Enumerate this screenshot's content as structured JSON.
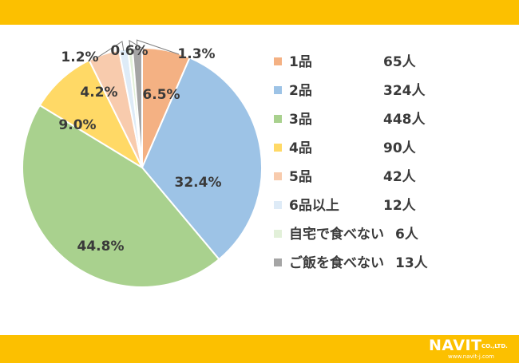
{
  "colors": {
    "band": "#fcc000",
    "text": "#3a3a3a",
    "leader": "#7f7f7f"
  },
  "chart_data": {
    "type": "pie",
    "start_angle_deg": 0,
    "direction": "clockwise",
    "slices": [
      {
        "label": "1品",
        "count": "65人",
        "value": 6.5,
        "pct_label": "6.5%",
        "color": "#f4b183"
      },
      {
        "label": "2品",
        "count": "324人",
        "value": 32.4,
        "pct_label": "32.4%",
        "color": "#9dc3e6"
      },
      {
        "label": "3品",
        "count": "448人",
        "value": 44.8,
        "pct_label": "44.8%",
        "color": "#a9d18e"
      },
      {
        "label": "4品",
        "count": "90人",
        "value": 9.0,
        "pct_label": "9.0%",
        "color": "#ffd966"
      },
      {
        "label": "5品",
        "count": "42人",
        "value": 4.2,
        "pct_label": "4.2%",
        "color": "#f8cbad"
      },
      {
        "label": "6品以上",
        "count": "12人",
        "value": 1.2,
        "pct_label": "1.2%",
        "color": "#deebf7"
      },
      {
        "label": "自宅で食べない",
        "count": "6人",
        "value": 0.6,
        "pct_label": "0.6%",
        "color": "#e2f0d9"
      },
      {
        "label": "ご飯を食べない",
        "count": "13人",
        "value": 1.3,
        "pct_label": "1.3%",
        "color": "#a5a5a5"
      }
    ],
    "legend_position": "right"
  },
  "logo": {
    "name": "NAVIT",
    "suffix": "CO.,LTD.",
    "url": "www.navit-j.com"
  }
}
